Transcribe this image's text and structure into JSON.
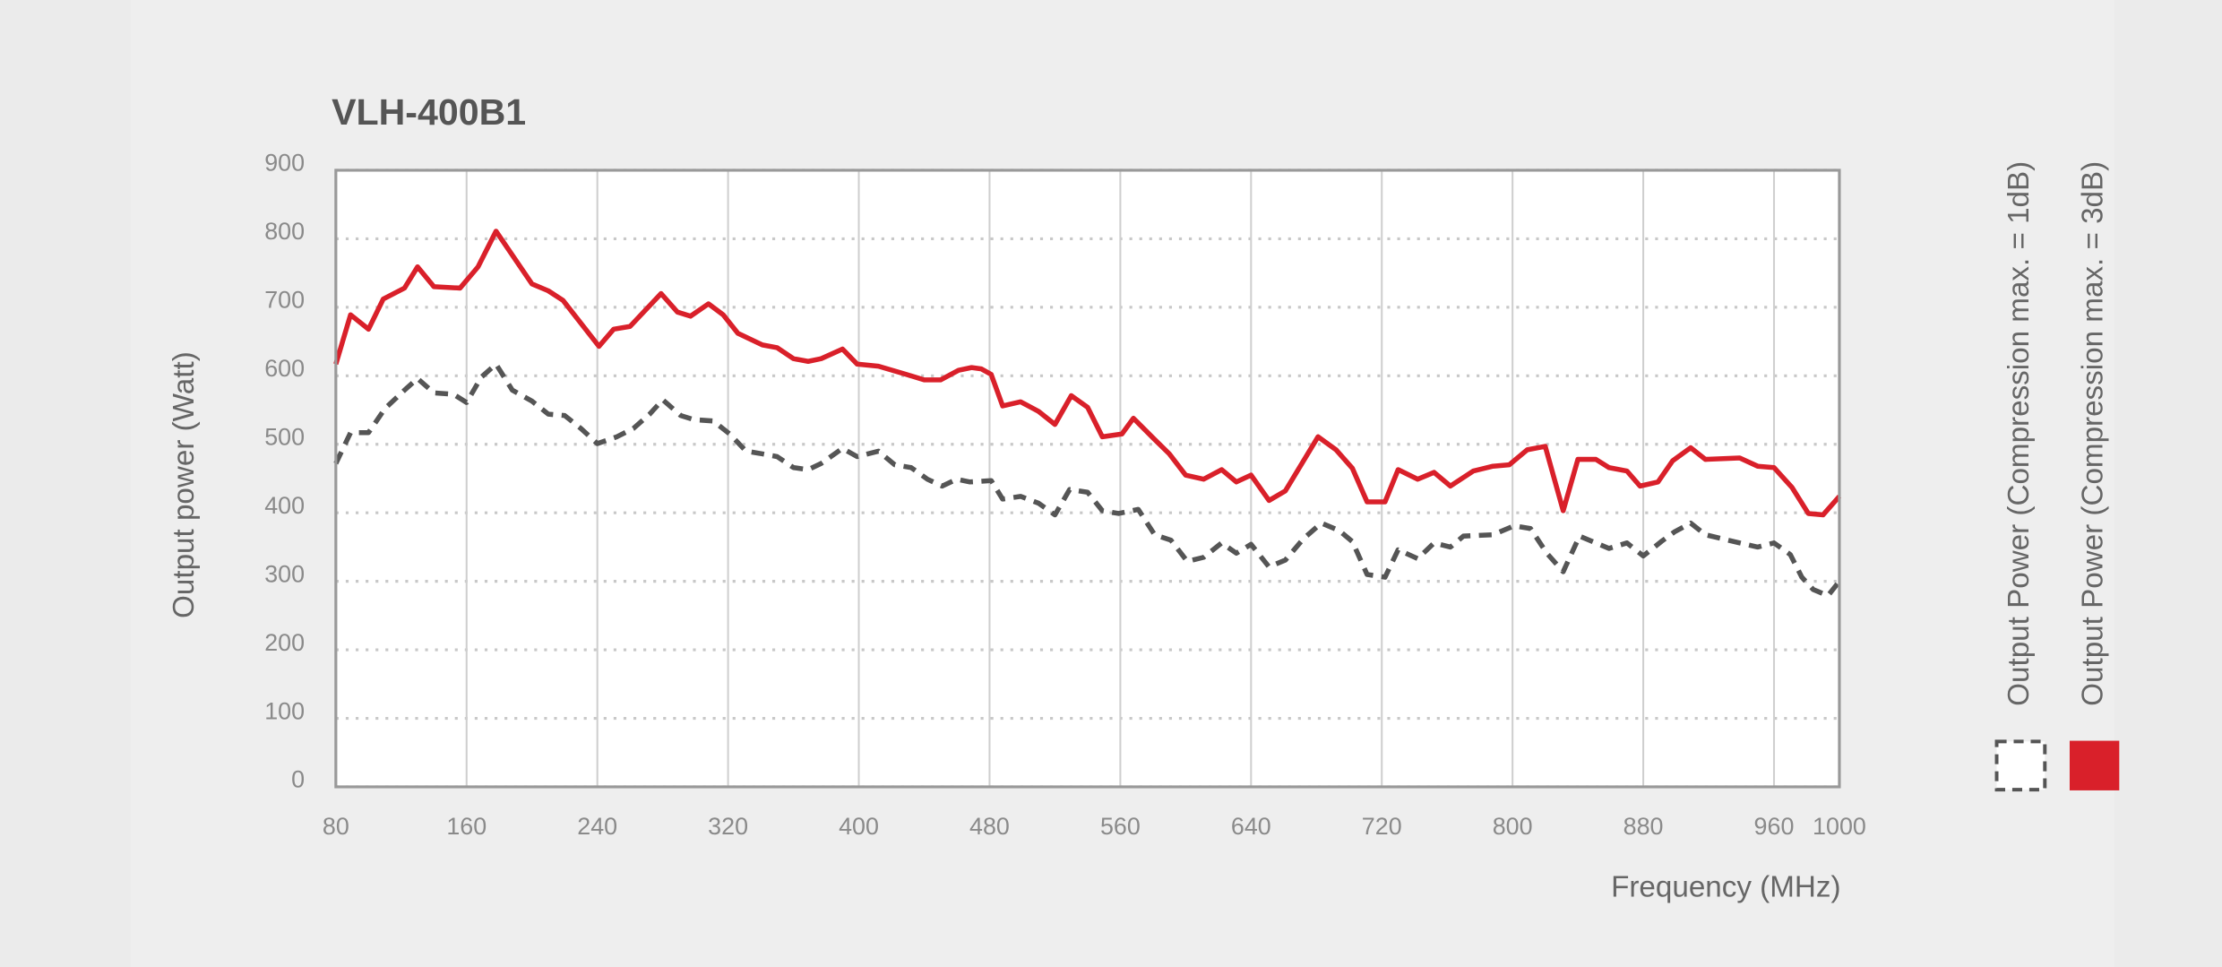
{
  "chart_data": {
    "type": "line",
    "title": "VLH-400B1",
    "x_label": "Frequency (MHz)",
    "y_label": "Output power (Watt)",
    "xlim": [
      80,
      1000
    ],
    "xticks": [
      80,
      160,
      240,
      320,
      400,
      480,
      560,
      640,
      720,
      800,
      880,
      960,
      1000
    ],
    "ylim": [
      0,
      900
    ],
    "yticks": [
      0,
      100,
      200,
      300,
      400,
      500,
      600,
      700,
      800,
      900
    ],
    "grid": true,
    "legend": "right",
    "series": [
      {
        "name": "Output Power (Compression max. = 1dB)",
        "color": "#555555",
        "style": "dashed",
        "x": [
          80,
          89,
          100,
          110,
          122,
          130,
          140,
          152,
          160,
          169,
          178,
          188,
          200,
          210,
          220,
          230,
          240,
          252,
          262,
          272,
          280,
          291,
          299,
          311,
          321,
          331,
          341,
          350,
          360,
          369,
          377,
          390,
          399,
          412,
          422,
          432,
          442,
          451,
          460,
          468,
          481,
          488,
          499,
          510,
          520,
          529,
          540,
          549,
          559,
          571,
          581,
          591,
          601,
          611,
          622,
          631,
          640,
          651,
          661,
          672,
          683,
          694,
          702,
          711,
          722,
          730,
          742,
          752,
          762,
          770,
          788,
          801,
          811,
          821,
          831,
          841,
          851,
          859,
          870,
          880,
          891,
          899,
          909,
          918,
          939,
          950,
          960,
          970,
          977,
          984,
          993,
          1000
        ],
        "values": [
          472,
          517,
          517,
          552,
          579,
          596,
          575,
          573,
          561,
          598,
          617,
          579,
          563,
          544,
          542,
          523,
          501,
          511,
          523,
          544,
          565,
          542,
          536,
          534,
          515,
          490,
          486,
          482,
          466,
          463,
          472,
          494,
          482,
          490,
          470,
          466,
          449,
          439,
          449,
          445,
          447,
          420,
          424,
          414,
          397,
          434,
          430,
          403,
          399,
          405,
          368,
          360,
          329,
          335,
          356,
          341,
          354,
          321,
          331,
          362,
          385,
          374,
          358,
          310,
          306,
          346,
          333,
          356,
          350,
          366,
          368,
          381,
          377,
          341,
          314,
          366,
          356,
          348,
          356,
          337,
          358,
          372,
          385,
          368,
          356,
          350,
          356,
          339,
          306,
          288,
          279,
          300
        ]
      },
      {
        "name": "Output Power (Compression max. = 3dB)",
        "color": "#d9202a",
        "style": "solid",
        "x": [
          80,
          89,
          100,
          109,
          122,
          130,
          140,
          156,
          167,
          178,
          200,
          210,
          219,
          241,
          250,
          260,
          279,
          289,
          297,
          308,
          317,
          326,
          341,
          350,
          360,
          369,
          377,
          390,
          399,
          412,
          429,
          440,
          450,
          461,
          469,
          475,
          481,
          488,
          499,
          510,
          520,
          530,
          540,
          549,
          561,
          568,
          581,
          590,
          600,
          611,
          622,
          631,
          640,
          651,
          661,
          681,
          692,
          702,
          711,
          722,
          730,
          742,
          752,
          762,
          776,
          788,
          798,
          809,
          820,
          831,
          840,
          851,
          859,
          870,
          878,
          889,
          898,
          909,
          918,
          939,
          950,
          960,
          971,
          981,
          990,
          1000
        ],
        "values": [
          617,
          689,
          668,
          712,
          728,
          759,
          730,
          728,
          759,
          811,
          734,
          724,
          710,
          643,
          668,
          672,
          720,
          693,
          687,
          705,
          689,
          662,
          645,
          641,
          625,
          621,
          625,
          639,
          617,
          614,
          602,
          594,
          594,
          608,
          612,
          610,
          602,
          556,
          562,
          548,
          529,
          571,
          554,
          511,
          515,
          538,
          507,
          486,
          455,
          449,
          463,
          445,
          455,
          418,
          432,
          511,
          492,
          465,
          416,
          416,
          463,
          449,
          459,
          439,
          461,
          468,
          470,
          492,
          497,
          403,
          478,
          478,
          466,
          461,
          439,
          445,
          476,
          495,
          478,
          480,
          468,
          466,
          437,
          399,
          397,
          424
        ]
      }
    ]
  }
}
